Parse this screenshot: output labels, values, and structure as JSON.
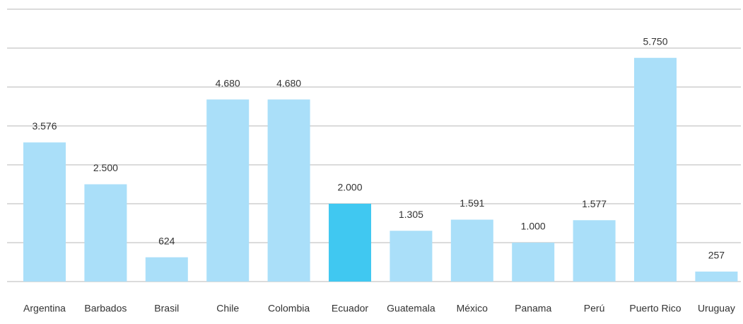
{
  "chart_data": {
    "type": "bar",
    "categories": [
      "Argentina",
      "Barbados",
      "Brasil",
      "Chile",
      "Colombia",
      "Ecuador",
      "Guatemala",
      "México",
      "Panama",
      "Perú",
      "Puerto Rico",
      "Uruguay"
    ],
    "values": [
      3576,
      2500,
      624,
      4680,
      4680,
      2000,
      1305,
      1591,
      1000,
      1577,
      5750,
      257
    ],
    "value_labels": [
      "3.576",
      "2.500",
      "624",
      "4.680",
      "4.680",
      "2.000",
      "1.305",
      "1.591",
      "1.000",
      "1.577",
      "5.750",
      "257"
    ],
    "colors": [
      "#aadff9",
      "#aadff9",
      "#aadff9",
      "#aadff9",
      "#aadff9",
      "#40c8f1",
      "#aadff9",
      "#aadff9",
      "#aadff9",
      "#aadff9",
      "#aadff9",
      "#aadff9"
    ],
    "ylim": [
      0,
      7000
    ],
    "yticks": [
      0,
      1000,
      2000,
      3000,
      4000,
      5000,
      6000,
      7000
    ],
    "grid": true
  }
}
